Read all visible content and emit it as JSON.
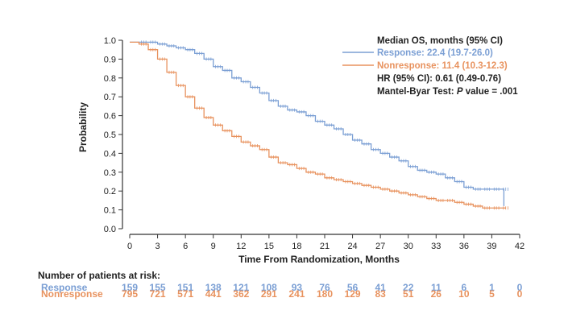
{
  "colors": {
    "response": "#7b9fd4",
    "nonresponse": "#e8925e",
    "axis": "#333333",
    "text": "#222222"
  },
  "chart_data": {
    "type": "line",
    "step": true,
    "xlabel": "Time From Randomization, Months",
    "ylabel": "Probability",
    "xlim": [
      0,
      42
    ],
    "ylim": [
      0,
      1.0
    ],
    "x_ticks": [
      "0",
      "3",
      "6",
      "9",
      "12",
      "15",
      "18",
      "21",
      "24",
      "27",
      "30",
      "33",
      "36",
      "39",
      "42"
    ],
    "y_ticks": [
      "0.0",
      "0.1",
      "0.2",
      "0.3",
      "0.4",
      "0.5",
      "0.6",
      "0.7",
      "0.8",
      "0.9",
      "1.0"
    ],
    "grid": false,
    "legend": {
      "position": "top-right",
      "title": "Median OS, months (95% CI)",
      "entries": [
        {
          "key": "response",
          "label": "Response: 22.4 (19.7-26.0)"
        },
        {
          "key": "nonresponse",
          "label": "Nonresponse: 11.4 (10.3-12.3)"
        }
      ],
      "hr": "HR (95% CI): 0.61 (0.49-0.76)",
      "test_prefix": "Mantel-Byar Test: ",
      "test_p": "P",
      "test_suffix": " value = .001"
    },
    "series": [
      {
        "name": "Response",
        "key": "response",
        "x": [
          0,
          1,
          2,
          3,
          4,
          5,
          6,
          7,
          8,
          9,
          10,
          11,
          12,
          13,
          14,
          15,
          16,
          17,
          18,
          19,
          20,
          21,
          22,
          23,
          24,
          25,
          26,
          27,
          28,
          29,
          30,
          31,
          32,
          33,
          34,
          35,
          36,
          37,
          38,
          39,
          40,
          40.3
        ],
        "y": [
          0.99,
          0.99,
          0.99,
          0.98,
          0.97,
          0.96,
          0.95,
          0.93,
          0.9,
          0.86,
          0.84,
          0.8,
          0.78,
          0.75,
          0.72,
          0.68,
          0.65,
          0.63,
          0.62,
          0.6,
          0.57,
          0.55,
          0.53,
          0.5,
          0.47,
          0.45,
          0.42,
          0.4,
          0.38,
          0.36,
          0.33,
          0.31,
          0.3,
          0.29,
          0.27,
          0.25,
          0.22,
          0.21,
          0.21,
          0.21,
          0.21,
          0.12
        ]
      },
      {
        "name": "Nonresponse",
        "key": "nonresponse",
        "x": [
          0,
          1,
          2,
          3,
          4,
          5,
          6,
          7,
          8,
          9,
          10,
          11,
          12,
          13,
          14,
          15,
          16,
          17,
          18,
          19,
          20,
          21,
          22,
          23,
          24,
          25,
          26,
          27,
          28,
          29,
          30,
          31,
          32,
          33,
          34,
          35,
          36,
          37,
          38,
          39,
          40,
          40.5
        ],
        "y": [
          0.99,
          0.98,
          0.95,
          0.9,
          0.83,
          0.76,
          0.7,
          0.64,
          0.59,
          0.55,
          0.52,
          0.49,
          0.46,
          0.44,
          0.42,
          0.38,
          0.35,
          0.34,
          0.32,
          0.3,
          0.29,
          0.27,
          0.26,
          0.25,
          0.24,
          0.23,
          0.22,
          0.21,
          0.2,
          0.19,
          0.18,
          0.17,
          0.16,
          0.15,
          0.15,
          0.14,
          0.13,
          0.12,
          0.11,
          0.11,
          0.11,
          0.11
        ]
      }
    ]
  },
  "risk_table": {
    "title": "Number of patients at risk:",
    "rows": [
      {
        "key": "response",
        "label": "Response",
        "values": [
          "159",
          "155",
          "151",
          "138",
          "121",
          "108",
          "93",
          "76",
          "56",
          "41",
          "22",
          "11",
          "6",
          "1",
          "0"
        ]
      },
      {
        "key": "nonresponse",
        "label": "Nonresponse",
        "values": [
          "795",
          "721",
          "571",
          "441",
          "362",
          "291",
          "241",
          "180",
          "129",
          "83",
          "51",
          "26",
          "10",
          "5",
          "0"
        ]
      }
    ]
  }
}
